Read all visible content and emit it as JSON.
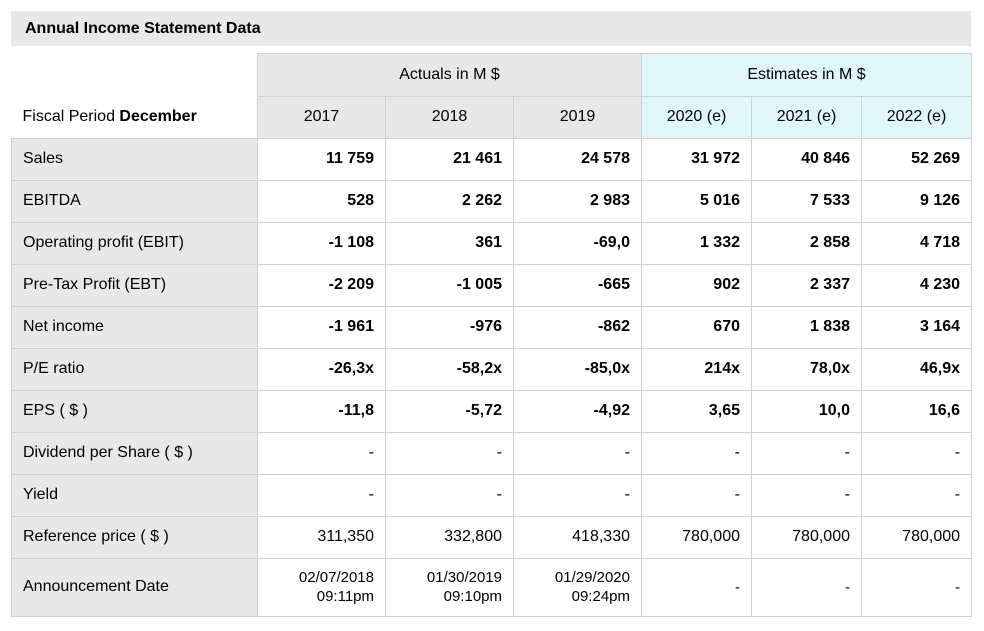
{
  "title": "Annual Income Statement Data",
  "header": {
    "actuals_label": "Actuals in M $",
    "estimates_label": "Estimates in M $",
    "fiscal_period_prefix": "Fiscal Period ",
    "fiscal_period_month": "December",
    "years": [
      "2017",
      "2018",
      "2019",
      "2020 (e)",
      "2021 (e)",
      "2022 (e)"
    ]
  },
  "rows": [
    {
      "label": "Sales",
      "values": [
        "11 759",
        "21 461",
        "24 578",
        "31 972",
        "40 846",
        "52 269"
      ]
    },
    {
      "label": "EBITDA",
      "values": [
        "528",
        "2 262",
        "2 983",
        "5 016",
        "7 533",
        "9 126"
      ]
    },
    {
      "label": "Operating profit (EBIT)",
      "values": [
        "-1 108",
        "361",
        "-69,0",
        "1 332",
        "2 858",
        "4 718"
      ]
    },
    {
      "label": "Pre-Tax Profit (EBT)",
      "values": [
        "-2 209",
        "-1 005",
        "-665",
        "902",
        "2 337",
        "4 230"
      ]
    },
    {
      "label": "Net income",
      "values": [
        "-1 961",
        "-976",
        "-862",
        "670",
        "1 838",
        "3 164"
      ]
    },
    {
      "label": "P/E ratio",
      "values": [
        "-26,3x",
        "-58,2x",
        "-85,0x",
        "214x",
        "78,0x",
        "46,9x"
      ]
    },
    {
      "label": "EPS ( $ )",
      "values": [
        "-11,8",
        "-5,72",
        "-4,92",
        "3,65",
        "10,0",
        "16,6"
      ]
    },
    {
      "label": "Dividend per Share ( $ )",
      "values": [
        "-",
        "-",
        "-",
        "-",
        "-",
        "-"
      ]
    },
    {
      "label": "Yield",
      "values": [
        "-",
        "-",
        "-",
        "-",
        "-",
        "-"
      ]
    },
    {
      "label": "Reference price ( $ )",
      "values": [
        "311,350",
        "332,800",
        "418,330",
        "780,000",
        "780,000",
        "780,000"
      ]
    }
  ],
  "announcement": {
    "label": "Announcement Date",
    "values": [
      {
        "date": "02/07/2018",
        "time": "09:11pm"
      },
      {
        "date": "01/30/2019",
        "time": "09:10pm"
      },
      {
        "date": "01/29/2020",
        "time": "09:24pm"
      },
      {
        "date": "-",
        "time": ""
      },
      {
        "date": "-",
        "time": ""
      },
      {
        "date": "-",
        "time": ""
      }
    ]
  }
}
